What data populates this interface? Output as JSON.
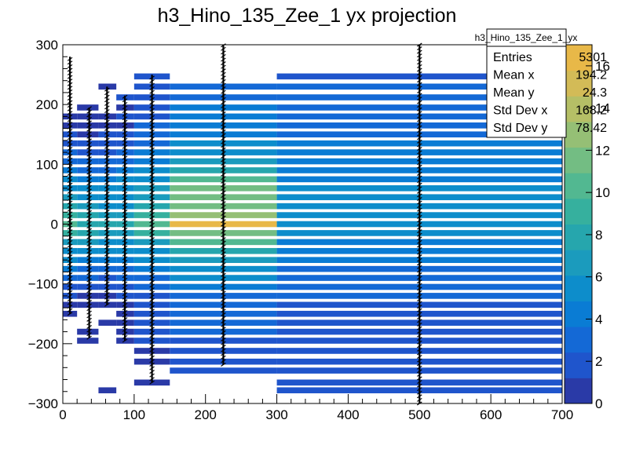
{
  "chart_data": {
    "type": "heatmap",
    "title": "h3_Hino_135_Zee_1 yx projection",
    "xlabel": "",
    "ylabel": "",
    "xlim": [
      0,
      700
    ],
    "ylim": [
      -300,
      300
    ],
    "x_ticks": [
      0,
      100,
      200,
      300,
      400,
      500,
      600,
      700
    ],
    "y_ticks": [
      -300,
      -200,
      -100,
      0,
      100,
      200,
      300
    ],
    "x_tick_labels": [
      "0",
      "100",
      "200",
      "300",
      "400",
      "500",
      "600",
      "700"
    ],
    "y_tick_labels": [
      "−300",
      "−200",
      "−100",
      "0",
      "100",
      "200",
      "300"
    ],
    "color_scale": {
      "min": 0,
      "max": 17,
      "ticks": [
        0,
        2,
        4,
        6,
        8,
        10,
        12,
        14,
        16
      ],
      "tick_labels": [
        "0",
        "2",
        "4",
        "6",
        "8",
        "10",
        "12",
        "14",
        "16"
      ],
      "palette": [
        "#2a3aa7",
        "#1f55cc",
        "#1469d6",
        "#0a7cd4",
        "#0d8dcb",
        "#1b9bbd",
        "#26a6ad",
        "#36b09e",
        "#52b891",
        "#73bd83",
        "#95bf75",
        "#b5bf66",
        "#d3bb57",
        "#e8b848"
      ]
    },
    "x_bins": [
      {
        "x0": 0,
        "x1": 20
      },
      {
        "x0": 20,
        "x1": 50
      },
      {
        "x0": 50,
        "x1": 75
      },
      {
        "x0": 75,
        "x1": 100
      },
      {
        "x0": 100,
        "x1": 150
      },
      {
        "x0": 150,
        "x1": 300
      },
      {
        "x0": 300,
        "x1": 700
      }
    ],
    "band_rows": [
      {
        "y": 247,
        "v": [
          0,
          0,
          0,
          0,
          2,
          0,
          2
        ]
      },
      {
        "y": 230,
        "v": [
          0,
          0,
          1,
          0,
          2,
          3,
          3
        ]
      },
      {
        "y": 212,
        "v": [
          0,
          0,
          0,
          2,
          2,
          3,
          3
        ]
      },
      {
        "y": 195,
        "v": [
          0,
          1,
          0,
          1,
          2,
          4,
          3
        ]
      },
      {
        "y": 180,
        "v": [
          1,
          1,
          1,
          2,
          2,
          4,
          3
        ]
      },
      {
        "y": 165,
        "v": [
          1,
          1,
          1,
          1,
          3,
          4,
          3
        ]
      },
      {
        "y": 150,
        "v": [
          2,
          1,
          2,
          2,
          3,
          4,
          3
        ]
      },
      {
        "y": 135,
        "v": [
          2,
          2,
          2,
          2,
          3,
          5,
          4
        ]
      },
      {
        "y": 120,
        "v": [
          3,
          2,
          2,
          3,
          4,
          6,
          4
        ]
      },
      {
        "y": 105,
        "v": [
          3,
          3,
          3,
          3,
          4,
          7,
          4
        ]
      },
      {
        "y": 90,
        "v": [
          4,
          3,
          3,
          4,
          5,
          8,
          4
        ]
      },
      {
        "y": 75,
        "v": [
          5,
          4,
          4,
          5,
          6,
          10,
          4
        ]
      },
      {
        "y": 60,
        "v": [
          6,
          5,
          5,
          5,
          7,
          11,
          5
        ]
      },
      {
        "y": 45,
        "v": [
          7,
          6,
          5,
          6,
          7,
          11,
          5
        ]
      },
      {
        "y": 30,
        "v": [
          8,
          7,
          6,
          6,
          8,
          12,
          5
        ]
      },
      {
        "y": 15,
        "v": [
          9,
          8,
          7,
          7,
          9,
          13,
          5
        ]
      },
      {
        "y": 0,
        "v": [
          10,
          8,
          8,
          8,
          10,
          16,
          5
        ]
      },
      {
        "y": -15,
        "v": [
          9,
          8,
          7,
          7,
          9,
          12,
          5
        ]
      },
      {
        "y": -30,
        "v": [
          7,
          7,
          6,
          6,
          7,
          10,
          4
        ]
      },
      {
        "y": -45,
        "v": [
          6,
          5,
          5,
          5,
          6,
          8,
          4
        ]
      },
      {
        "y": -60,
        "v": [
          5,
          4,
          4,
          4,
          5,
          7,
          4
        ]
      },
      {
        "y": -75,
        "v": [
          4,
          3,
          3,
          3,
          4,
          6,
          3
        ]
      },
      {
        "y": -90,
        "v": [
          3,
          3,
          2,
          3,
          3,
          5,
          3
        ]
      },
      {
        "y": -105,
        "v": [
          2,
          2,
          2,
          2,
          3,
          4,
          3
        ]
      },
      {
        "y": -120,
        "v": [
          2,
          1,
          1,
          2,
          2,
          3,
          3
        ]
      },
      {
        "y": -135,
        "v": [
          1,
          1,
          1,
          1,
          2,
          3,
          2
        ]
      },
      {
        "y": -150,
        "v": [
          1,
          0,
          0,
          1,
          2,
          3,
          2
        ]
      },
      {
        "y": -165,
        "v": [
          0,
          0,
          1,
          1,
          2,
          3,
          2
        ]
      },
      {
        "y": -180,
        "v": [
          0,
          1,
          0,
          1,
          2,
          3,
          2
        ]
      },
      {
        "y": -195,
        "v": [
          0,
          1,
          0,
          1,
          2,
          2,
          2
        ]
      },
      {
        "y": -212,
        "v": [
          0,
          0,
          0,
          0,
          1,
          2,
          2
        ]
      },
      {
        "y": -230,
        "v": [
          0,
          0,
          0,
          0,
          1,
          2,
          2
        ]
      },
      {
        "y": -245,
        "v": [
          0,
          0,
          0,
          0,
          0,
          2,
          2
        ]
      },
      {
        "y": -265,
        "v": [
          0,
          0,
          0,
          0,
          1,
          0,
          2
        ]
      },
      {
        "y": -278,
        "v": [
          0,
          0,
          1,
          0,
          0,
          0,
          2
        ]
      }
    ],
    "error_columns": [
      {
        "x": 10,
        "ymin": -150,
        "ymax": 280
      },
      {
        "x": 37,
        "ymin": -190,
        "ymax": 195
      },
      {
        "x": 62,
        "ymin": -135,
        "ymax": 230
      },
      {
        "x": 87,
        "ymin": -195,
        "ymax": 215
      },
      {
        "x": 125,
        "ymin": -265,
        "ymax": 250
      },
      {
        "x": 225,
        "ymin": -235,
        "ymax": 300
      },
      {
        "x": 500,
        "ymin": -300,
        "ymax": 300
      }
    ],
    "stats_box": {
      "title": "h3_Hino_135_Zee_1_yx",
      "rows": [
        {
          "label": "Entries",
          "value": "5301"
        },
        {
          "label": "Mean x",
          "value": "194.2"
        },
        {
          "label": "Mean y",
          "value": "24.3"
        },
        {
          "label": "Std Dev x",
          "value": "168.2"
        },
        {
          "label": "Std Dev y",
          "value": "78.42"
        }
      ]
    }
  }
}
